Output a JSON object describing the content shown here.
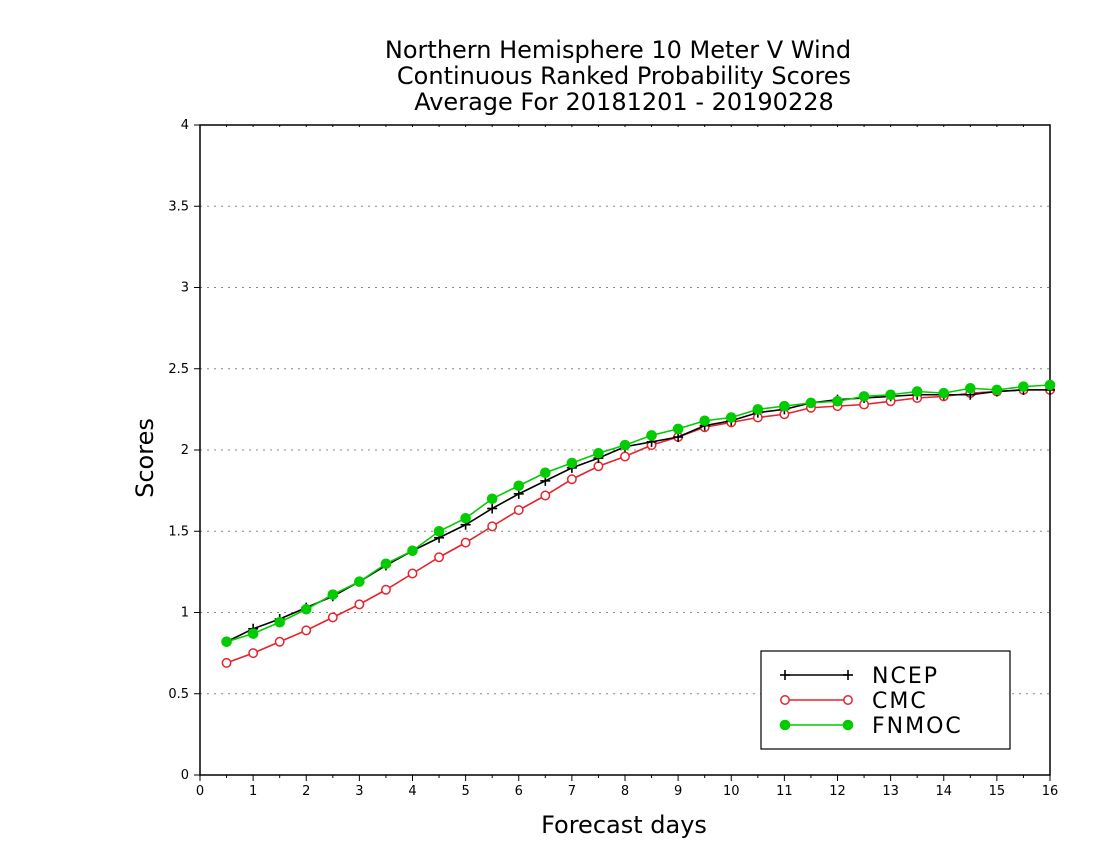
{
  "chart_data": {
    "type": "line",
    "title": [
      "Northern Hemisphere 10 Meter V Wind",
      "Continuous Ranked Probability Scores",
      "Average For 20181201 - 20190228"
    ],
    "xlabel": "Forecast days",
    "ylabel": "Scores",
    "xlim": [
      0,
      16
    ],
    "ylim": [
      0,
      4
    ],
    "x_ticks": [
      0,
      1,
      2,
      3,
      4,
      5,
      6,
      7,
      8,
      9,
      10,
      11,
      12,
      13,
      14,
      15,
      16
    ],
    "y_ticks": [
      0,
      0.5,
      1,
      1.5,
      2,
      2.5,
      3,
      3.5,
      4
    ],
    "y_tick_labels": [
      "0",
      "0.5",
      "1",
      "1.5",
      "2",
      "2.5",
      "3",
      "3.5",
      "4"
    ],
    "grid": "horizontal dotted",
    "legend_position": "bottom-right",
    "x": [
      0.5,
      1,
      1.5,
      2,
      2.5,
      3,
      3.5,
      4,
      4.5,
      5,
      5.5,
      6,
      6.5,
      7,
      7.5,
      8,
      8.5,
      9,
      9.5,
      10,
      10.5,
      11,
      11.5,
      12,
      12.5,
      13,
      13.5,
      14,
      14.5,
      15,
      15.5,
      16
    ],
    "series": [
      {
        "name": "NCEP",
        "color": "#000000",
        "marker": "plus",
        "values": [
          0.82,
          0.9,
          0.96,
          1.03,
          1.1,
          1.19,
          1.29,
          1.38,
          1.46,
          1.54,
          1.64,
          1.73,
          1.81,
          1.89,
          1.95,
          2.02,
          2.05,
          2.08,
          2.15,
          2.18,
          2.23,
          2.25,
          2.29,
          2.31,
          2.32,
          2.33,
          2.34,
          2.34,
          2.34,
          2.36,
          2.37,
          2.37
        ]
      },
      {
        "name": "CMC",
        "color": "#e8222a",
        "marker": "open-circle",
        "values": [
          0.69,
          0.75,
          0.82,
          0.89,
          0.97,
          1.05,
          1.14,
          1.24,
          1.34,
          1.43,
          1.53,
          1.63,
          1.72,
          1.82,
          1.9,
          1.96,
          2.03,
          2.08,
          2.14,
          2.17,
          2.2,
          2.22,
          2.26,
          2.27,
          2.28,
          2.3,
          2.32,
          2.33,
          2.35,
          2.36,
          2.37,
          2.37
        ]
      },
      {
        "name": "FNMOC",
        "color": "#00cc00",
        "marker": "filled-circle",
        "values": [
          0.82,
          0.87,
          0.94,
          1.02,
          1.11,
          1.19,
          1.3,
          1.38,
          1.5,
          1.58,
          1.7,
          1.78,
          1.86,
          1.92,
          1.98,
          2.03,
          2.09,
          2.13,
          2.18,
          2.2,
          2.25,
          2.27,
          2.29,
          2.3,
          2.33,
          2.34,
          2.36,
          2.35,
          2.38,
          2.37,
          2.39,
          2.4
        ]
      }
    ]
  }
}
